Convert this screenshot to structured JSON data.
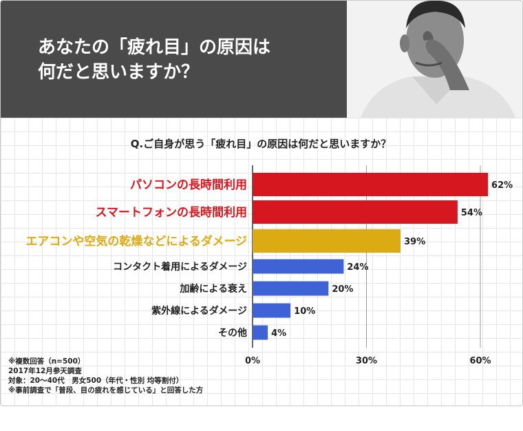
{
  "header": {
    "title_line1": "あなたの「疲れ目」の原因は",
    "title_line2": "何だと思いますか？"
  },
  "question": "Q.ご自身が思う「疲れ目」の原因は何だと思いますか？",
  "notes": {
    "line1": "※複数回答（n=500）",
    "line2": "2017年12月参天調査",
    "line3": "対象：20〜40代　男女500（年代・性別 均等割付）",
    "line4": "※事前調査で「普段、目の疲れを感じている」と回答した方"
  },
  "colors": {
    "top": "#d7171f",
    "mid": "#dcaa12",
    "rest": "#3f63d6",
    "header_bg": "#4a4a4a"
  },
  "chart_data": {
    "type": "bar",
    "orientation": "horizontal",
    "categories": [
      "パソコンの長時間利用",
      "スマートフォンの長時間利用",
      "エアコンや空気の乾燥などによるダメージ",
      "コンタクト着用によるダメージ",
      "加齢による衰え",
      "紫外線によるダメージ",
      "その他"
    ],
    "values": [
      62,
      54,
      39,
      24,
      20,
      10,
      4
    ],
    "value_labels": [
      "62%",
      "54%",
      "39%",
      "24%",
      "20%",
      "10%",
      "4%"
    ],
    "xlim": [
      0,
      60
    ],
    "xticks": [
      0,
      30,
      60
    ],
    "xtick_labels": [
      "0%",
      "30%",
      "60%"
    ],
    "bar_colors": [
      "#d7171f",
      "#d7171f",
      "#dcaa12",
      "#3f63d6",
      "#3f63d6",
      "#3f63d6",
      "#3f63d6"
    ],
    "label_colors": [
      "#d7171f",
      "#d7171f",
      "#dcaa12",
      "#222222",
      "#222222",
      "#222222",
      "#222222"
    ],
    "grid": true
  }
}
